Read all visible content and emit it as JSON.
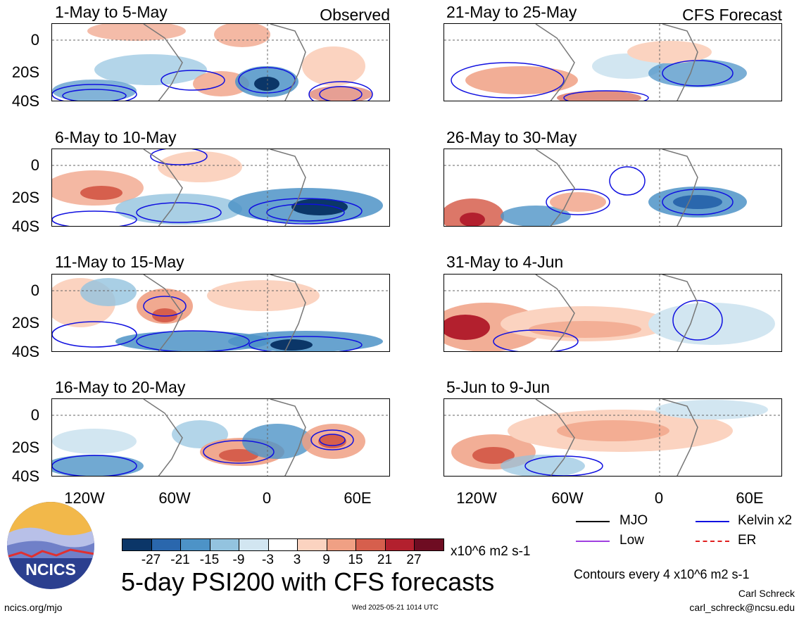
{
  "panels_left": [
    {
      "title": "1-May to 5-May",
      "label": "Observed"
    },
    {
      "title": "6-May to 10-May",
      "label": ""
    },
    {
      "title": "11-May to 15-May",
      "label": ""
    },
    {
      "title": "16-May to 20-May",
      "label": ""
    }
  ],
  "panels_right": [
    {
      "title": "21-May to 25-May",
      "label": "CFS Forecast"
    },
    {
      "title": "26-May to 30-May",
      "label": ""
    },
    {
      "title": "31-May to 4-Jun",
      "label": ""
    },
    {
      "title": "5-Jun to 9-Jun",
      "label": ""
    }
  ],
  "lat_labels": [
    "0",
    "20S",
    "40S"
  ],
  "lon_labels": [
    "120W",
    "60W",
    "0",
    "60E"
  ],
  "legend": {
    "mjo": "MJO",
    "kelvin": "Kelvin x2",
    "low": "Low",
    "er": "ER",
    "colors": {
      "mjo": "#000000",
      "kelvin": "#1010e0",
      "low": "#a040e0",
      "er": "#e02020"
    }
  },
  "colorbar": {
    "ticks": [
      "-27",
      "-21",
      "-15",
      "-9",
      "-3",
      "3",
      "9",
      "15",
      "21",
      "27"
    ],
    "colors": [
      "#0b3668",
      "#2a67ad",
      "#4d93c7",
      "#93c3df",
      "#d2e6f1",
      "#ffffff",
      "#fbd3c0",
      "#f0a084",
      "#d65f4d",
      "#b3202e",
      "#6e0c22"
    ],
    "units": "x10^6 m2 s-1"
  },
  "main_title": "5-day PSI200 with CFS forecasts",
  "contours_note": "Contours every 4 x10^6 m2 s-1",
  "author": "Carl Schreck",
  "email": "carl_schreck@ncsu.edu",
  "website": "ncics.org/mjo",
  "timestamp": "Wed 2025-05-21 1014 UTC",
  "logo_text": "NCICS"
}
